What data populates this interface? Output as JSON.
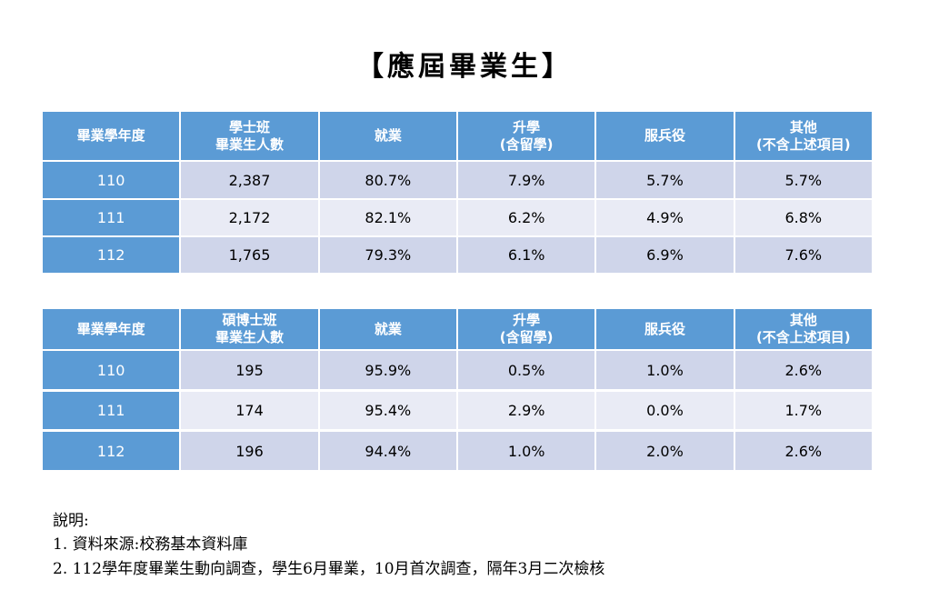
{
  "title": "【應屆畢業生】",
  "tables": [
    {
      "header": [
        [
          "畢業學年度"
        ],
        [
          "學士班",
          "畢業生人數"
        ],
        [
          "就業"
        ],
        [
          "升學",
          "(含留學)"
        ],
        [
          "服兵役"
        ],
        [
          "其他",
          "(不含上述項目)"
        ]
      ],
      "rows": [
        [
          "110",
          "2,387",
          "80.7%",
          "7.9%",
          "5.7%",
          "5.7%"
        ],
        [
          "111",
          "2,172",
          "82.1%",
          "6.2%",
          "4.9%",
          "6.8%"
        ],
        [
          "112",
          "1,765",
          "79.3%",
          "6.1%",
          "6.9%",
          "7.6%"
        ]
      ]
    },
    {
      "header": [
        [
          "畢業學年度"
        ],
        [
          "碩博士班",
          "畢業生人數"
        ],
        [
          "就業"
        ],
        [
          "升學",
          "(含留學)"
        ],
        [
          "服兵役"
        ],
        [
          "其他",
          "(不含上述項目)"
        ]
      ],
      "rows": [
        [
          "110",
          "195",
          "95.9%",
          "0.5%",
          "1.0%",
          "2.6%"
        ],
        [
          "111",
          "174",
          "95.4%",
          "2.9%",
          "0.0%",
          "1.7%"
        ],
        [
          "112",
          "196",
          "94.4%",
          "1.0%",
          "2.0%",
          "2.6%"
        ]
      ]
    }
  ],
  "notes": [
    "說明:",
    "1. 資料來源:校務基本資料庫",
    "2. 112學年度畢業生動向調查，學生6月畢業，10月首次調查，隔年3月二次檢核"
  ]
}
